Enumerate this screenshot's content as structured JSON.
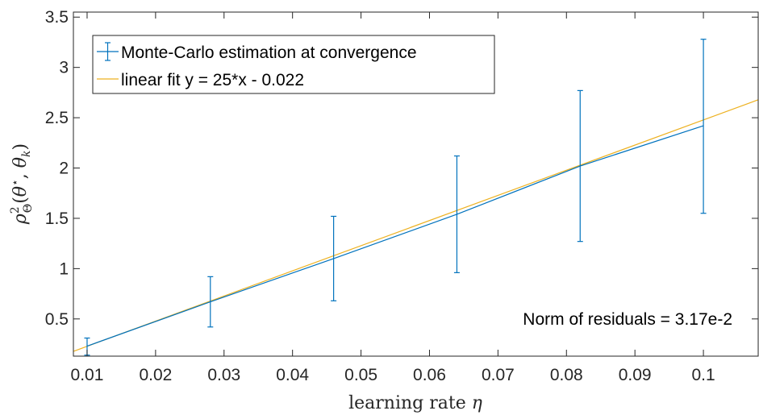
{
  "chart_data": {
    "type": "line",
    "xlabel": "learning rate η",
    "ylabel": "ρ²Θ(θ*, θk)",
    "xlim": [
      0.008,
      0.108
    ],
    "ylim": [
      0.13,
      3.55
    ],
    "xticks": [
      0.01,
      0.02,
      0.03,
      0.04,
      0.05,
      0.06,
      0.07,
      0.08,
      0.09,
      0.1
    ],
    "xtick_labels": [
      "0.01",
      "0.02",
      "0.03",
      "0.04",
      "0.05",
      "0.06",
      "0.07",
      "0.08",
      "0.09",
      "0.1"
    ],
    "yticks": [
      0.5,
      1,
      1.5,
      2,
      2.5,
      3,
      3.5
    ],
    "ytick_labels": [
      "0.5",
      "1",
      "1.5",
      "2",
      "2.5",
      "3",
      "3.5"
    ],
    "grid": false,
    "legend_position": "top-left",
    "series": [
      {
        "name": "Monte-Carlo estimation at convergence",
        "kind": "errorbar",
        "color": "#0072BD",
        "x": [
          0.01,
          0.028,
          0.046,
          0.064,
          0.082,
          0.1
        ],
        "y": [
          0.23,
          0.67,
          1.1,
          1.54,
          2.02,
          2.42
        ],
        "err_low": [
          0.09,
          0.25,
          0.42,
          0.58,
          0.75,
          0.87
        ],
        "err_high": [
          0.08,
          0.25,
          0.42,
          0.58,
          0.75,
          0.86
        ]
      },
      {
        "name": "linear fit y = 25*x - 0.022",
        "kind": "line",
        "color": "#EDB120",
        "slope": 25,
        "intercept": -0.022
      }
    ],
    "annotations": [
      {
        "text": "Norm of residuals = 3.17e-2",
        "position": "bottom-right"
      }
    ]
  }
}
